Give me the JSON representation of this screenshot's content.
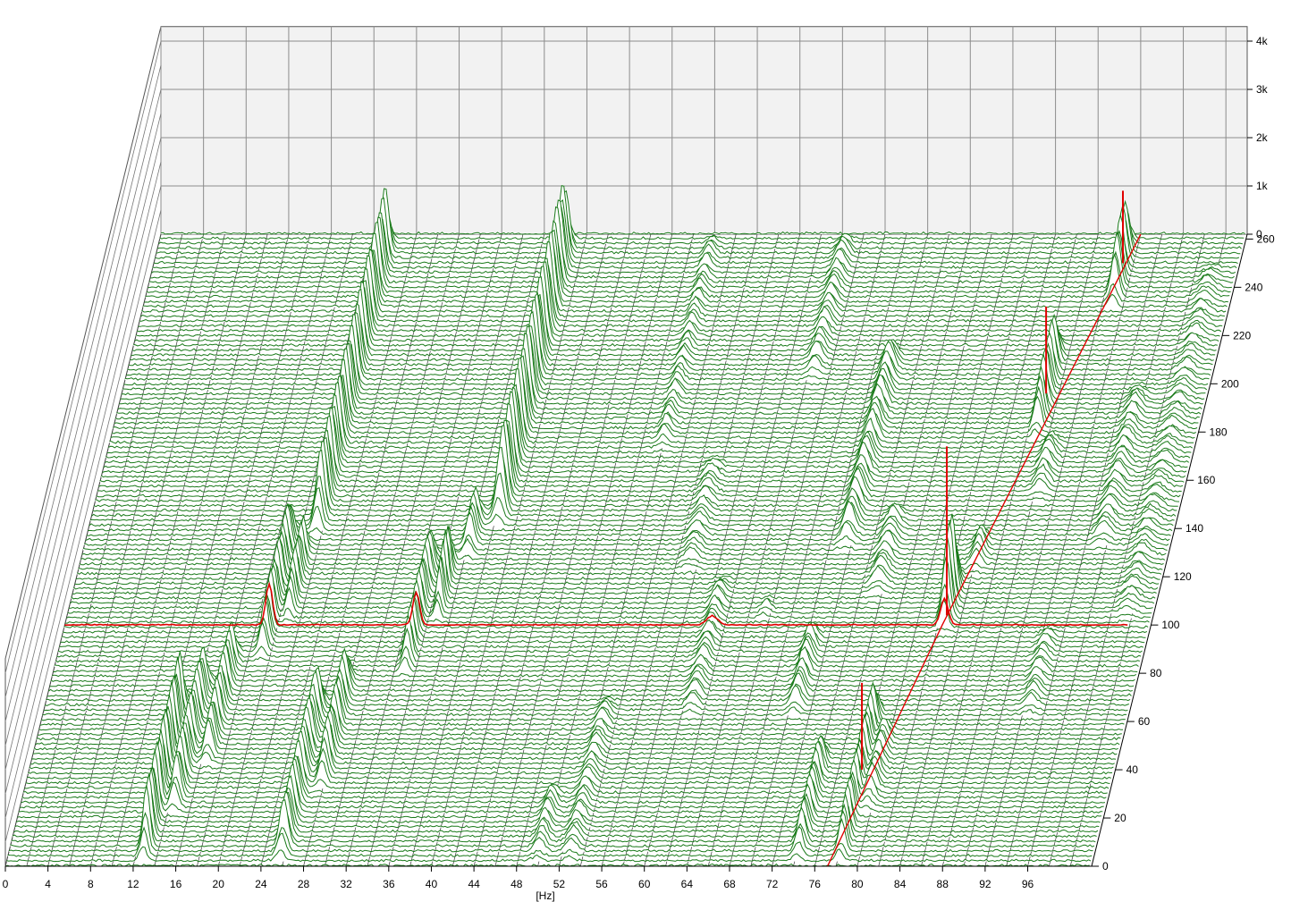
{
  "chart_data": {
    "type": "waterfall",
    "xlabel": "[Hz]",
    "x_ticks": [
      "0",
      "4",
      "8",
      "12",
      "16",
      "20",
      "24",
      "28",
      "32",
      "36",
      "40",
      "44",
      "48",
      "52",
      "56",
      "60",
      "64",
      "68",
      "72",
      "76",
      "80",
      "84",
      "88",
      "92",
      "96"
    ],
    "xlim": [
      0,
      102
    ],
    "y_ticks": [
      "0",
      "20",
      "40",
      "60",
      "80",
      "100",
      "120",
      "140",
      "160",
      "180",
      "200",
      "220",
      "240",
      "260"
    ],
    "ylim": [
      0,
      262
    ],
    "z_ticks": [
      "0",
      "1k",
      "2k",
      "3k",
      "4k"
    ],
    "zlim": [
      0,
      4300
    ],
    "grid": true,
    "colors": {
      "trace": "#1a7a1a",
      "highlight": "#e00000",
      "wall": "#f2f2f2",
      "grid": "#8c8c8c",
      "fill": "#ffffff"
    },
    "highlight_slice": 100,
    "order_line": {
      "points": [
        [
          77.2,
          0
        ],
        [
          82.4,
          100
        ],
        [
          92.0,
          262
        ]
      ]
    },
    "peaks": [
      {
        "f": 12.8,
        "y0": 0,
        "y1": 72,
        "amp": 1300,
        "w": 0.45
      },
      {
        "f": 14.5,
        "y0": 20,
        "y1": 80,
        "amp": 1000,
        "w": 0.5
      },
      {
        "f": 16.5,
        "y0": 40,
        "y1": 92,
        "amp": 900,
        "w": 0.5
      },
      {
        "f": 19.2,
        "y0": 84,
        "y1": 142,
        "amp": 1000,
        "w": 0.45
      },
      {
        "f": 20.8,
        "y0": 100,
        "y1": 136,
        "amp": 900,
        "w": 0.4
      },
      {
        "f": 21.5,
        "y0": 136,
        "y1": 262,
        "amp": 1400,
        "w": 0.5
      },
      {
        "f": 25.7,
        "y0": 0,
        "y1": 72,
        "amp": 1000,
        "w": 0.55
      },
      {
        "f": 27.8,
        "y0": 30,
        "y1": 82,
        "amp": 900,
        "w": 0.5
      },
      {
        "f": 33.0,
        "y0": 78,
        "y1": 132,
        "amp": 900,
        "w": 0.45
      },
      {
        "f": 34.8,
        "y0": 100,
        "y1": 130,
        "amp": 1100,
        "w": 0.35
      },
      {
        "f": 36.2,
        "y0": 126,
        "y1": 150,
        "amp": 800,
        "w": 0.5
      },
      {
        "f": 38.3,
        "y0": 140,
        "y1": 262,
        "amp": 1600,
        "w": 0.55
      },
      {
        "f": 49.8,
        "y0": 0,
        "y1": 34,
        "amp": 400,
        "w": 0.6
      },
      {
        "f": 52.8,
        "y0": 0,
        "y1": 70,
        "amp": 350,
        "w": 0.7
      },
      {
        "f": 57.3,
        "y0": 120,
        "y1": 170,
        "amp": 300,
        "w": 0.8
      },
      {
        "f": 60.8,
        "y0": 60,
        "y1": 120,
        "amp": 350,
        "w": 0.7
      },
      {
        "f": 52.0,
        "y0": 170,
        "y1": 262,
        "amp": 300,
        "w": 0.6
      },
      {
        "f": 64.5,
        "y0": 200,
        "y1": 262,
        "amp": 400,
        "w": 0.7
      },
      {
        "f": 65.5,
        "y0": 100,
        "y1": 112,
        "amp": 300,
        "w": 0.5
      },
      {
        "f": 70.5,
        "y0": 60,
        "y1": 100,
        "amp": 500,
        "w": 0.6
      },
      {
        "f": 71.5,
        "y0": 130,
        "y1": 216,
        "amp": 600,
        "w": 0.7
      },
      {
        "f": 74.2,
        "y0": 0,
        "y1": 50,
        "amp": 700,
        "w": 0.5
      },
      {
        "f": 75.5,
        "y0": 110,
        "y1": 150,
        "amp": 400,
        "w": 0.8
      },
      {
        "f": 78.2,
        "y0": 0,
        "y1": 68,
        "amp": 900,
        "w": 0.45
      },
      {
        "f": 79.6,
        "y0": 20,
        "y1": 60,
        "amp": 500,
        "w": 0.6
      },
      {
        "f": 82.6,
        "y0": 96,
        "y1": 122,
        "amp": 1700,
        "w": 0.5
      },
      {
        "f": 84.2,
        "y0": 120,
        "y1": 140,
        "amp": 500,
        "w": 0.6
      },
      {
        "f": 86.8,
        "y0": 176,
        "y1": 218,
        "amp": 1000,
        "w": 0.5
      },
      {
        "f": 88.5,
        "y0": 150,
        "y1": 180,
        "amp": 400,
        "w": 0.7
      },
      {
        "f": 91.0,
        "y0": 230,
        "y1": 262,
        "amp": 1200,
        "w": 0.5
      },
      {
        "f": 92.6,
        "y0": 60,
        "y1": 100,
        "amp": 300,
        "w": 0.7
      },
      {
        "f": 95.5,
        "y0": 130,
        "y1": 200,
        "amp": 350,
        "w": 0.8
      },
      {
        "f": 99.5,
        "y0": 100,
        "y1": 250,
        "amp": 250,
        "w": 0.9
      }
    ]
  }
}
